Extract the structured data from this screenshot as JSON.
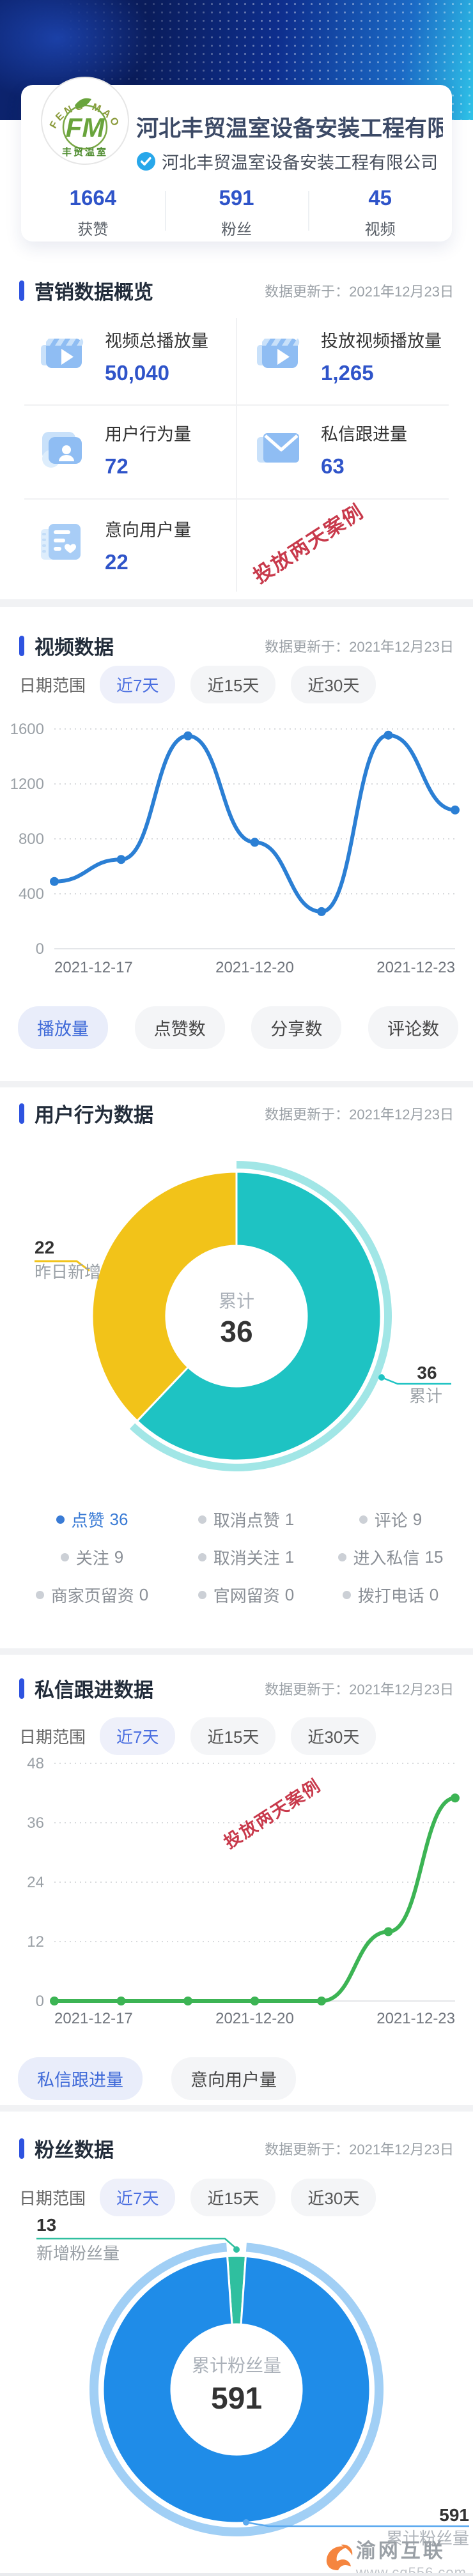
{
  "updated": "数据更新于：2021年12月23日",
  "profile": {
    "logo": {
      "arc_text": "FENG MAO",
      "monogram": "FM",
      "caption": "丰贸温室"
    },
    "title": "河北丰贸温室设备安装工程有限...",
    "verified_name": "河北丰贸温室设备安装工程有限公司",
    "stats": [
      {
        "value": "1664",
        "label": "获赞"
      },
      {
        "value": "591",
        "label": "粉丝"
      },
      {
        "value": "45",
        "label": "视频"
      }
    ]
  },
  "annotation": {
    "text": "投放两天案例",
    "color": "#c8394b"
  },
  "date_filter": {
    "label": "日期范围",
    "options": [
      "近7天",
      "近15天",
      "近30天"
    ],
    "selected": "近7天"
  },
  "overview": {
    "title": "营销数据概览",
    "cells": [
      {
        "icon": "video-play-icon",
        "label": "视频总播放量",
        "value": "50,040"
      },
      {
        "icon": "video-play-icon",
        "label": "投放视频播放量",
        "value": "1,265"
      },
      {
        "icon": "user-folder-icon",
        "label": "用户行为量",
        "value": "72"
      },
      {
        "icon": "mail-icon",
        "label": "私信跟进量",
        "value": "63"
      },
      {
        "icon": "intent-doc-icon",
        "label": "意向用户量",
        "value": "22"
      }
    ]
  },
  "video_section": {
    "title": "视频数据",
    "tabs": [
      {
        "label": "播放量",
        "active": true
      },
      {
        "label": "点赞数",
        "active": false
      },
      {
        "label": "分享数",
        "active": false
      },
      {
        "label": "评论数",
        "active": false
      }
    ]
  },
  "behavior_section": {
    "title": "用户行为数据",
    "center_label": "累计",
    "center_value": "36",
    "callout_left": {
      "value": "22",
      "label": "昨日新增"
    },
    "callout_right": {
      "value": "36",
      "label": "累计"
    },
    "legend": [
      {
        "label": "点赞",
        "value": "36",
        "active": true
      },
      {
        "label": "取消点赞",
        "value": "1",
        "active": false
      },
      {
        "label": "评论",
        "value": "9",
        "active": false
      },
      {
        "label": "关注",
        "value": "9",
        "active": false
      },
      {
        "label": "取消关注",
        "value": "1",
        "active": false
      },
      {
        "label": "进入私信",
        "value": "15",
        "active": false
      },
      {
        "label": "商家页留资",
        "value": "0",
        "active": false
      },
      {
        "label": "官网留资",
        "value": "0",
        "active": false
      },
      {
        "label": "拨打电话",
        "value": "0",
        "active": false
      }
    ]
  },
  "message_section": {
    "title": "私信跟进数据",
    "tabs": [
      {
        "label": "私信跟进量",
        "active": true
      },
      {
        "label": "意向用户量",
        "active": false
      }
    ]
  },
  "fans_section": {
    "title": "粉丝数据",
    "center_label": "累计粉丝量",
    "center_value": "591",
    "callout_top": {
      "value": "13",
      "label": "新增粉丝量"
    },
    "callout_bottom": {
      "value": "591",
      "label": "累计粉丝量"
    }
  },
  "watermark": {
    "name": "渝网互联",
    "url": "www.cq556.com"
  },
  "chart_data": [
    {
      "id": "video-plays",
      "type": "line",
      "title": "视频数据 - 播放量(近7天)",
      "x": [
        "2021-12-17",
        "2021-12-18",
        "2021-12-19",
        "2021-12-20",
        "2021-12-21",
        "2021-12-22",
        "2021-12-23"
      ],
      "values": [
        490,
        650,
        1550,
        775,
        270,
        1555,
        1010
      ],
      "ylim": [
        0,
        1600
      ],
      "yticks": [
        0,
        400,
        800,
        1200,
        1600
      ],
      "xtick_labels": [
        "2021-12-17",
        "2021-12-20",
        "2021-12-23"
      ],
      "color": "#2b7fd4",
      "grid": "dotted"
    },
    {
      "id": "behavior-pie",
      "type": "pie",
      "title": "用户行为数据",
      "slices": [
        {
          "name": "累计",
          "value": 36,
          "color": "#1ec3c3",
          "highlighted": true
        },
        {
          "name": "昨日新增",
          "value": 22,
          "color": "#f2c319",
          "highlighted": false
        }
      ]
    },
    {
      "id": "message-line",
      "type": "line",
      "title": "私信跟进数据 - 私信跟进量(近7天)",
      "x": [
        "2021-12-17",
        "2021-12-18",
        "2021-12-19",
        "2021-12-20",
        "2021-12-21",
        "2021-12-22",
        "2021-12-23"
      ],
      "values": [
        0,
        0,
        0,
        0,
        0,
        14,
        41
      ],
      "ylim": [
        0,
        48
      ],
      "yticks": [
        0,
        12,
        24,
        36,
        48
      ],
      "xtick_labels": [
        "2021-12-17",
        "2021-12-20",
        "2021-12-23"
      ],
      "color": "#3cb454",
      "grid": "dotted"
    },
    {
      "id": "fans-pie",
      "type": "pie",
      "title": "粉丝数据",
      "slices": [
        {
          "name": "新增粉丝量",
          "value": 13,
          "color": "#2fbf9f",
          "highlighted": false
        },
        {
          "name": "累计粉丝量",
          "value": 578,
          "color": "#1f8ce8",
          "highlighted": true
        }
      ]
    }
  ]
}
